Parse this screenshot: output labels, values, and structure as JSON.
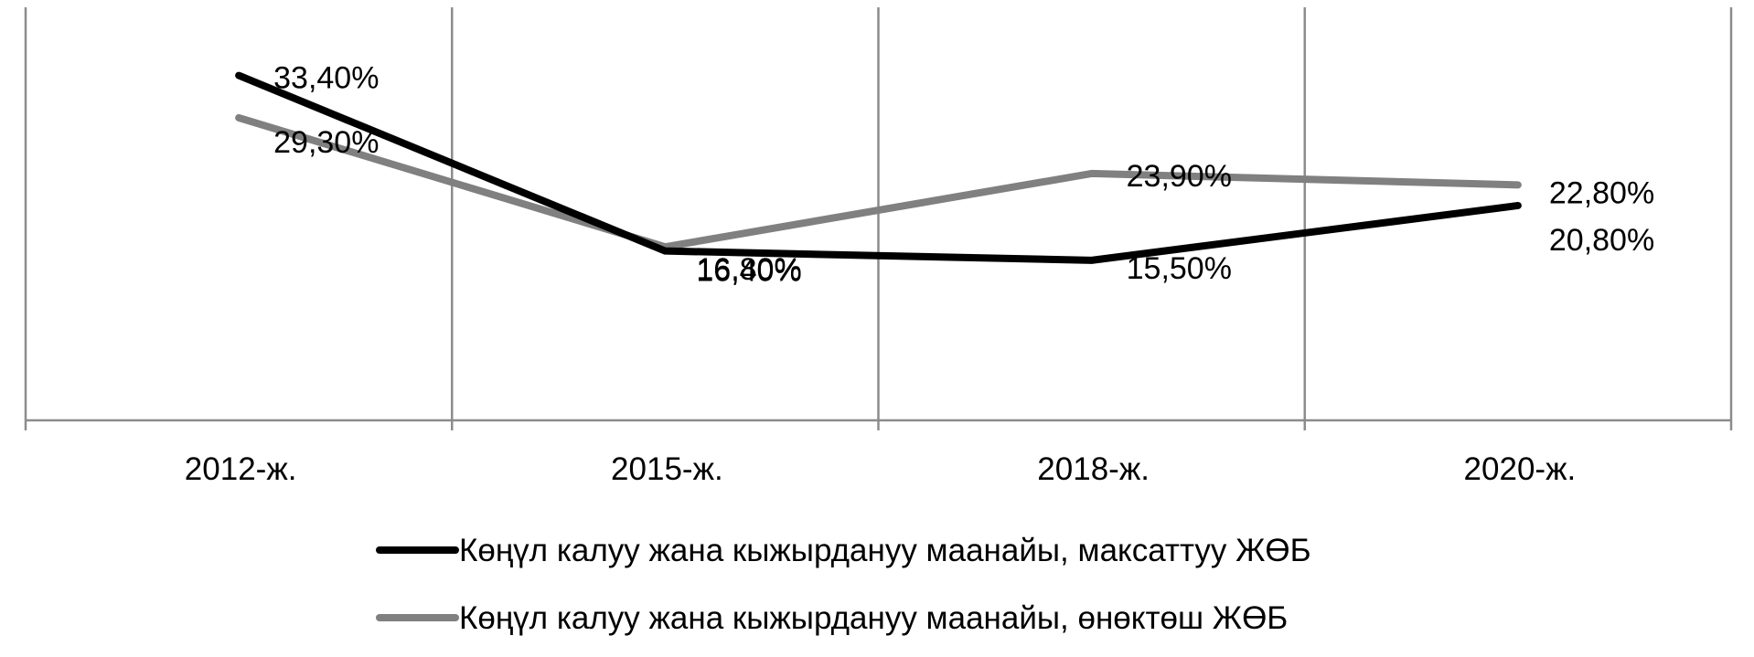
{
  "chart_data": {
    "type": "line",
    "title": "",
    "xlabel": "",
    "ylabel": "",
    "categories": [
      "2012-ж.",
      "2015-ж.",
      "2018-ж.",
      "2020-ж."
    ],
    "ylim": [
      0,
      40
    ],
    "grid": "vertical",
    "legend_position": "bottom",
    "series": [
      {
        "name": "Көңүл калуу жана кыжырдануу маанайы, максаттуу ЖӨБ",
        "values": [
          33.4,
          16.4,
          15.5,
          20.8
        ],
        "labels": [
          "33,40%",
          "16,40%",
          "15,50%",
          "20,80%"
        ],
        "color": "#000000"
      },
      {
        "name": "Көңүл калуу жана кыжырдануу маанайы, өнөктөш ЖӨБ",
        "values": [
          29.3,
          16.8,
          23.9,
          22.8
        ],
        "labels": [
          "29,30%",
          "16,80%",
          "23,90%",
          "22,80%"
        ],
        "color": "#808080"
      }
    ]
  }
}
